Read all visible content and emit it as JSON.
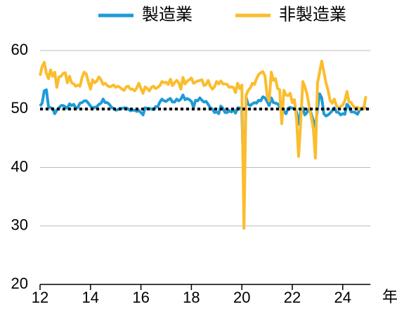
{
  "chart_data": {
    "type": "line",
    "x": [
      12,
      12.083,
      12.167,
      12.25,
      12.333,
      12.417,
      12.5,
      12.583,
      12.667,
      12.75,
      12.833,
      12.917,
      13,
      13.083,
      13.167,
      13.25,
      13.333,
      13.417,
      13.5,
      13.583,
      13.667,
      13.75,
      13.833,
      13.917,
      14,
      14.083,
      14.167,
      14.25,
      14.333,
      14.417,
      14.5,
      14.583,
      14.667,
      14.75,
      14.833,
      14.917,
      15,
      15.083,
      15.167,
      15.25,
      15.333,
      15.417,
      15.5,
      15.583,
      15.667,
      15.75,
      15.833,
      15.917,
      16,
      16.083,
      16.167,
      16.25,
      16.333,
      16.417,
      16.5,
      16.583,
      16.667,
      16.75,
      16.833,
      16.917,
      17,
      17.083,
      17.167,
      17.25,
      17.333,
      17.417,
      17.5,
      17.583,
      17.667,
      17.75,
      17.833,
      17.917,
      18,
      18.083,
      18.167,
      18.25,
      18.333,
      18.417,
      18.5,
      18.583,
      18.667,
      18.75,
      18.833,
      18.917,
      19,
      19.083,
      19.167,
      19.25,
      19.333,
      19.417,
      19.5,
      19.583,
      19.667,
      19.75,
      19.833,
      19.917,
      20,
      20.083,
      20.167,
      20.25,
      20.333,
      20.417,
      20.5,
      20.583,
      20.667,
      20.75,
      20.833,
      20.917,
      21,
      21.083,
      21.167,
      21.25,
      21.333,
      21.417,
      21.5,
      21.583,
      21.667,
      21.75,
      21.833,
      21.917,
      22,
      22.083,
      22.167,
      22.25,
      22.333,
      22.417,
      22.5,
      22.583,
      22.667,
      22.75,
      22.833,
      22.917,
      23,
      23.083,
      23.167,
      23.25,
      23.333,
      23.417,
      23.5,
      23.583,
      23.667,
      23.75,
      23.833,
      23.917,
      24,
      24.083,
      24.167,
      24.25,
      24.333,
      24.417,
      24.5,
      24.583,
      24.667,
      24.75,
      24.833,
      24.917
    ],
    "series": [
      {
        "name": "製造業",
        "color": "#1e9bd7",
        "values": [
          50.5,
          51.0,
          53.1,
          53.3,
          50.4,
          50.2,
          50.1,
          49.2,
          49.8,
          50.2,
          50.6,
          50.6,
          50.4,
          50.1,
          50.9,
          50.6,
          50.8,
          50.1,
          50.3,
          51.0,
          51.1,
          51.4,
          51.4,
          51.0,
          50.5,
          50.2,
          50.3,
          50.4,
          50.8,
          51.0,
          51.7,
          51.1,
          51.1,
          50.8,
          50.3,
          50.1,
          49.8,
          49.9,
          50.1,
          50.1,
          50.2,
          50.2,
          50.0,
          49.7,
          49.8,
          49.8,
          49.6,
          49.7,
          49.4,
          49.0,
          50.2,
          50.1,
          50.1,
          50.0,
          49.9,
          50.4,
          50.4,
          51.2,
          51.7,
          51.4,
          51.3,
          51.6,
          51.8,
          51.2,
          51.2,
          51.7,
          51.4,
          51.7,
          52.4,
          51.6,
          51.8,
          51.6,
          51.3,
          50.3,
          51.5,
          51.4,
          51.9,
          51.5,
          51.2,
          51.3,
          50.8,
          50.2,
          50.0,
          49.4,
          49.5,
          49.2,
          50.5,
          50.1,
          49.4,
          49.4,
          49.7,
          49.5,
          49.8,
          49.3,
          50.2,
          50.2,
          50.0,
          35.7,
          52.0,
          50.8,
          50.6,
          50.9,
          51.1,
          51.0,
          51.5,
          51.4,
          52.1,
          51.9,
          51.3,
          50.6,
          51.9,
          51.1,
          51.0,
          50.9,
          50.4,
          50.1,
          49.6,
          49.2,
          50.1,
          50.3,
          50.1,
          50.2,
          49.5,
          47.4,
          49.6,
          50.2,
          49.0,
          49.4,
          50.1,
          49.2,
          48.0,
          47.0,
          50.1,
          52.6,
          51.9,
          49.2,
          48.8,
          49.0,
          49.3,
          49.7,
          50.2,
          49.5,
          49.4,
          49.0,
          49.2,
          49.1,
          50.8,
          50.4,
          49.5,
          49.5,
          49.4,
          49.1,
          49.8,
          50.1,
          50.3,
          50.1
        ]
      },
      {
        "name": "非製造業",
        "color": "#fbbd2e",
        "values": [
          55.7,
          57.3,
          58.0,
          56.1,
          55.2,
          56.7,
          55.6,
          56.3,
          53.7,
          55.5,
          55.6,
          56.1,
          56.2,
          54.5,
          55.6,
          54.5,
          54.3,
          53.9,
          54.1,
          53.9,
          55.4,
          56.3,
          56.0,
          54.6,
          53.4,
          55.0,
          54.5,
          54.8,
          55.5,
          55.0,
          54.2,
          54.4,
          54.0,
          53.8,
          53.9,
          54.1,
          53.7,
          53.9,
          53.7,
          53.4,
          53.2,
          53.8,
          53.9,
          53.4,
          53.4,
          53.1,
          53.6,
          54.4,
          53.5,
          52.7,
          53.8,
          53.5,
          53.1,
          53.7,
          53.9,
          53.5,
          53.7,
          54.0,
          54.7,
          54.5,
          54.6,
          54.2,
          55.1,
          54.0,
          54.5,
          54.9,
          54.5,
          53.4,
          55.4,
          54.3,
          54.8,
          55.0,
          55.3,
          54.4,
          54.6,
          54.8,
          54.9,
          55.0,
          54.0,
          54.2,
          54.9,
          53.9,
          53.4,
          53.8,
          54.7,
          54.3,
          54.8,
          54.3,
          54.3,
          54.2,
          53.7,
          53.8,
          53.7,
          52.8,
          54.4,
          53.5,
          54.1,
          29.6,
          52.3,
          53.2,
          53.6,
          54.4,
          54.2,
          55.2,
          55.9,
          56.2,
          56.4,
          55.7,
          52.4,
          51.4,
          56.3,
          54.9,
          55.2,
          53.5,
          53.3,
          47.5,
          53.2,
          52.4,
          52.3,
          52.7,
          51.1,
          51.6,
          48.4,
          41.9,
          47.8,
          54.7,
          53.8,
          52.6,
          50.6,
          48.7,
          46.7,
          41.6,
          54.4,
          56.3,
          58.2,
          56.4,
          54.5,
          53.2,
          51.5,
          51.0,
          51.7,
          50.6,
          50.2,
          50.4,
          50.7,
          51.4,
          53.0,
          51.2,
          51.1,
          50.5,
          50.2,
          50.3,
          50.0,
          50.2,
          50.0,
          52.2
        ]
      }
    ],
    "reference_line": 50,
    "xlabel": "年",
    "xlim": [
      12,
      25.1
    ],
    "xticks": [
      12,
      14,
      16,
      18,
      20,
      22,
      24
    ],
    "ylim": [
      20,
      60
    ],
    "yticks": [
      20,
      30,
      40,
      50,
      60
    ],
    "grid": true
  }
}
